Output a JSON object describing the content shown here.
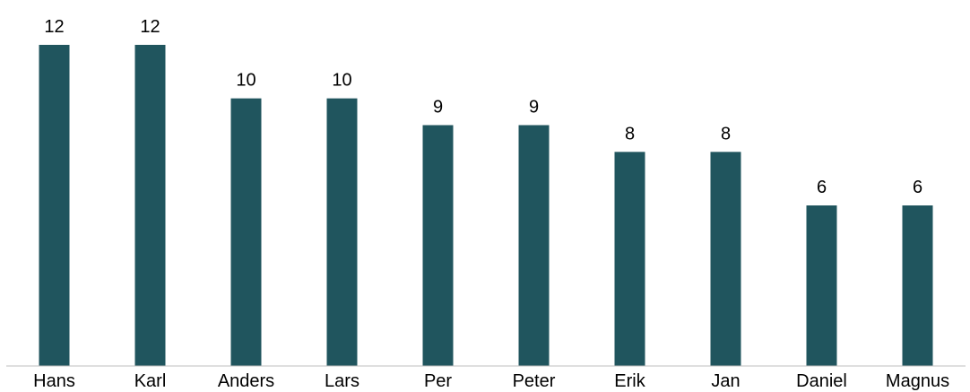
{
  "chart_data": {
    "type": "bar",
    "title": "",
    "xlabel": "",
    "ylabel": "",
    "categories": [
      "Hans",
      "Karl",
      "Anders",
      "Lars",
      "Per",
      "Peter",
      "Erik",
      "Jan",
      "Daniel",
      "Magnus"
    ],
    "values": [
      12,
      12,
      10,
      10,
      9,
      9,
      8,
      8,
      6,
      6
    ],
    "ylim": [
      0,
      12
    ],
    "grid": false,
    "legend": "none",
    "data_labels": true,
    "bar_color": "#20555E",
    "axis_color": "#BFBFBF"
  }
}
